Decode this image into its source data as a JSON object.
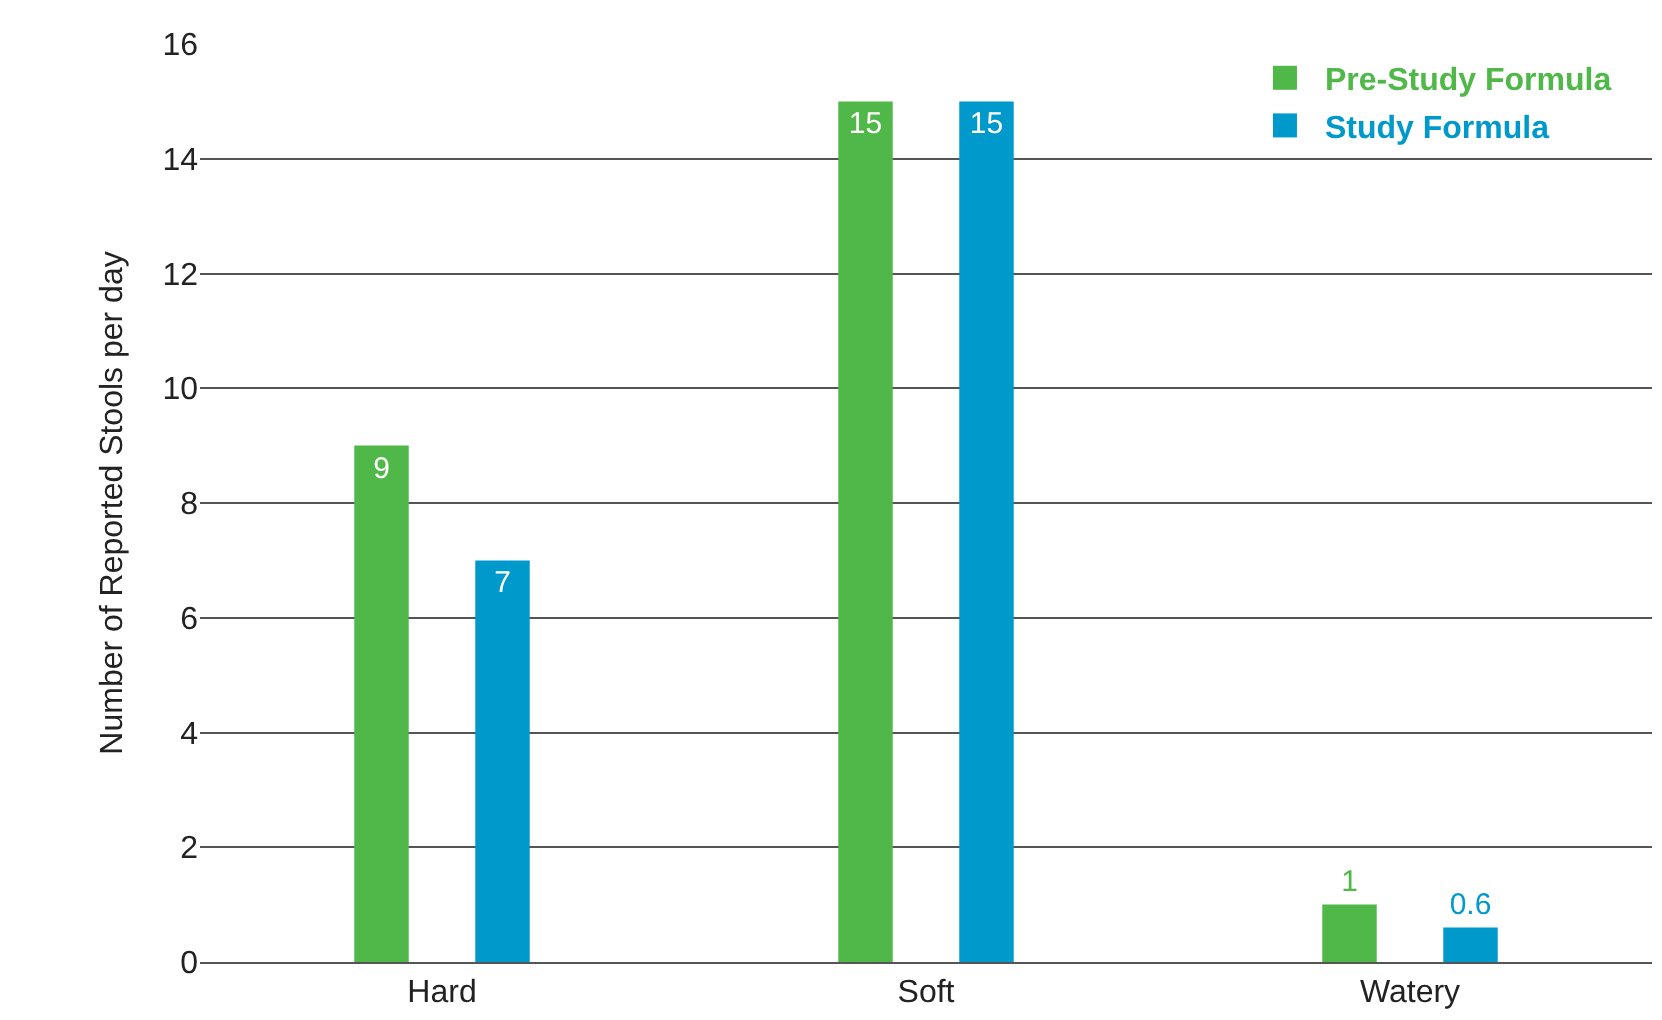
{
  "chart_data": {
    "type": "bar",
    "ylabel": "Number of Reported Stools per day",
    "categories": [
      "Hard",
      "Soft",
      "Watery"
    ],
    "series": [
      {
        "name": "Pre-Study Formula",
        "color": "#50b848",
        "values": [
          9,
          15,
          1
        ]
      },
      {
        "name": "Study Formula",
        "color": "#0099cc",
        "values": [
          7,
          15,
          0.6
        ]
      }
    ],
    "ylim": [
      0,
      16
    ],
    "yticks": [
      0,
      2,
      4,
      6,
      8,
      10,
      12,
      14,
      16
    ],
    "grid": "y",
    "legend": "top right",
    "data_labels": true
  }
}
